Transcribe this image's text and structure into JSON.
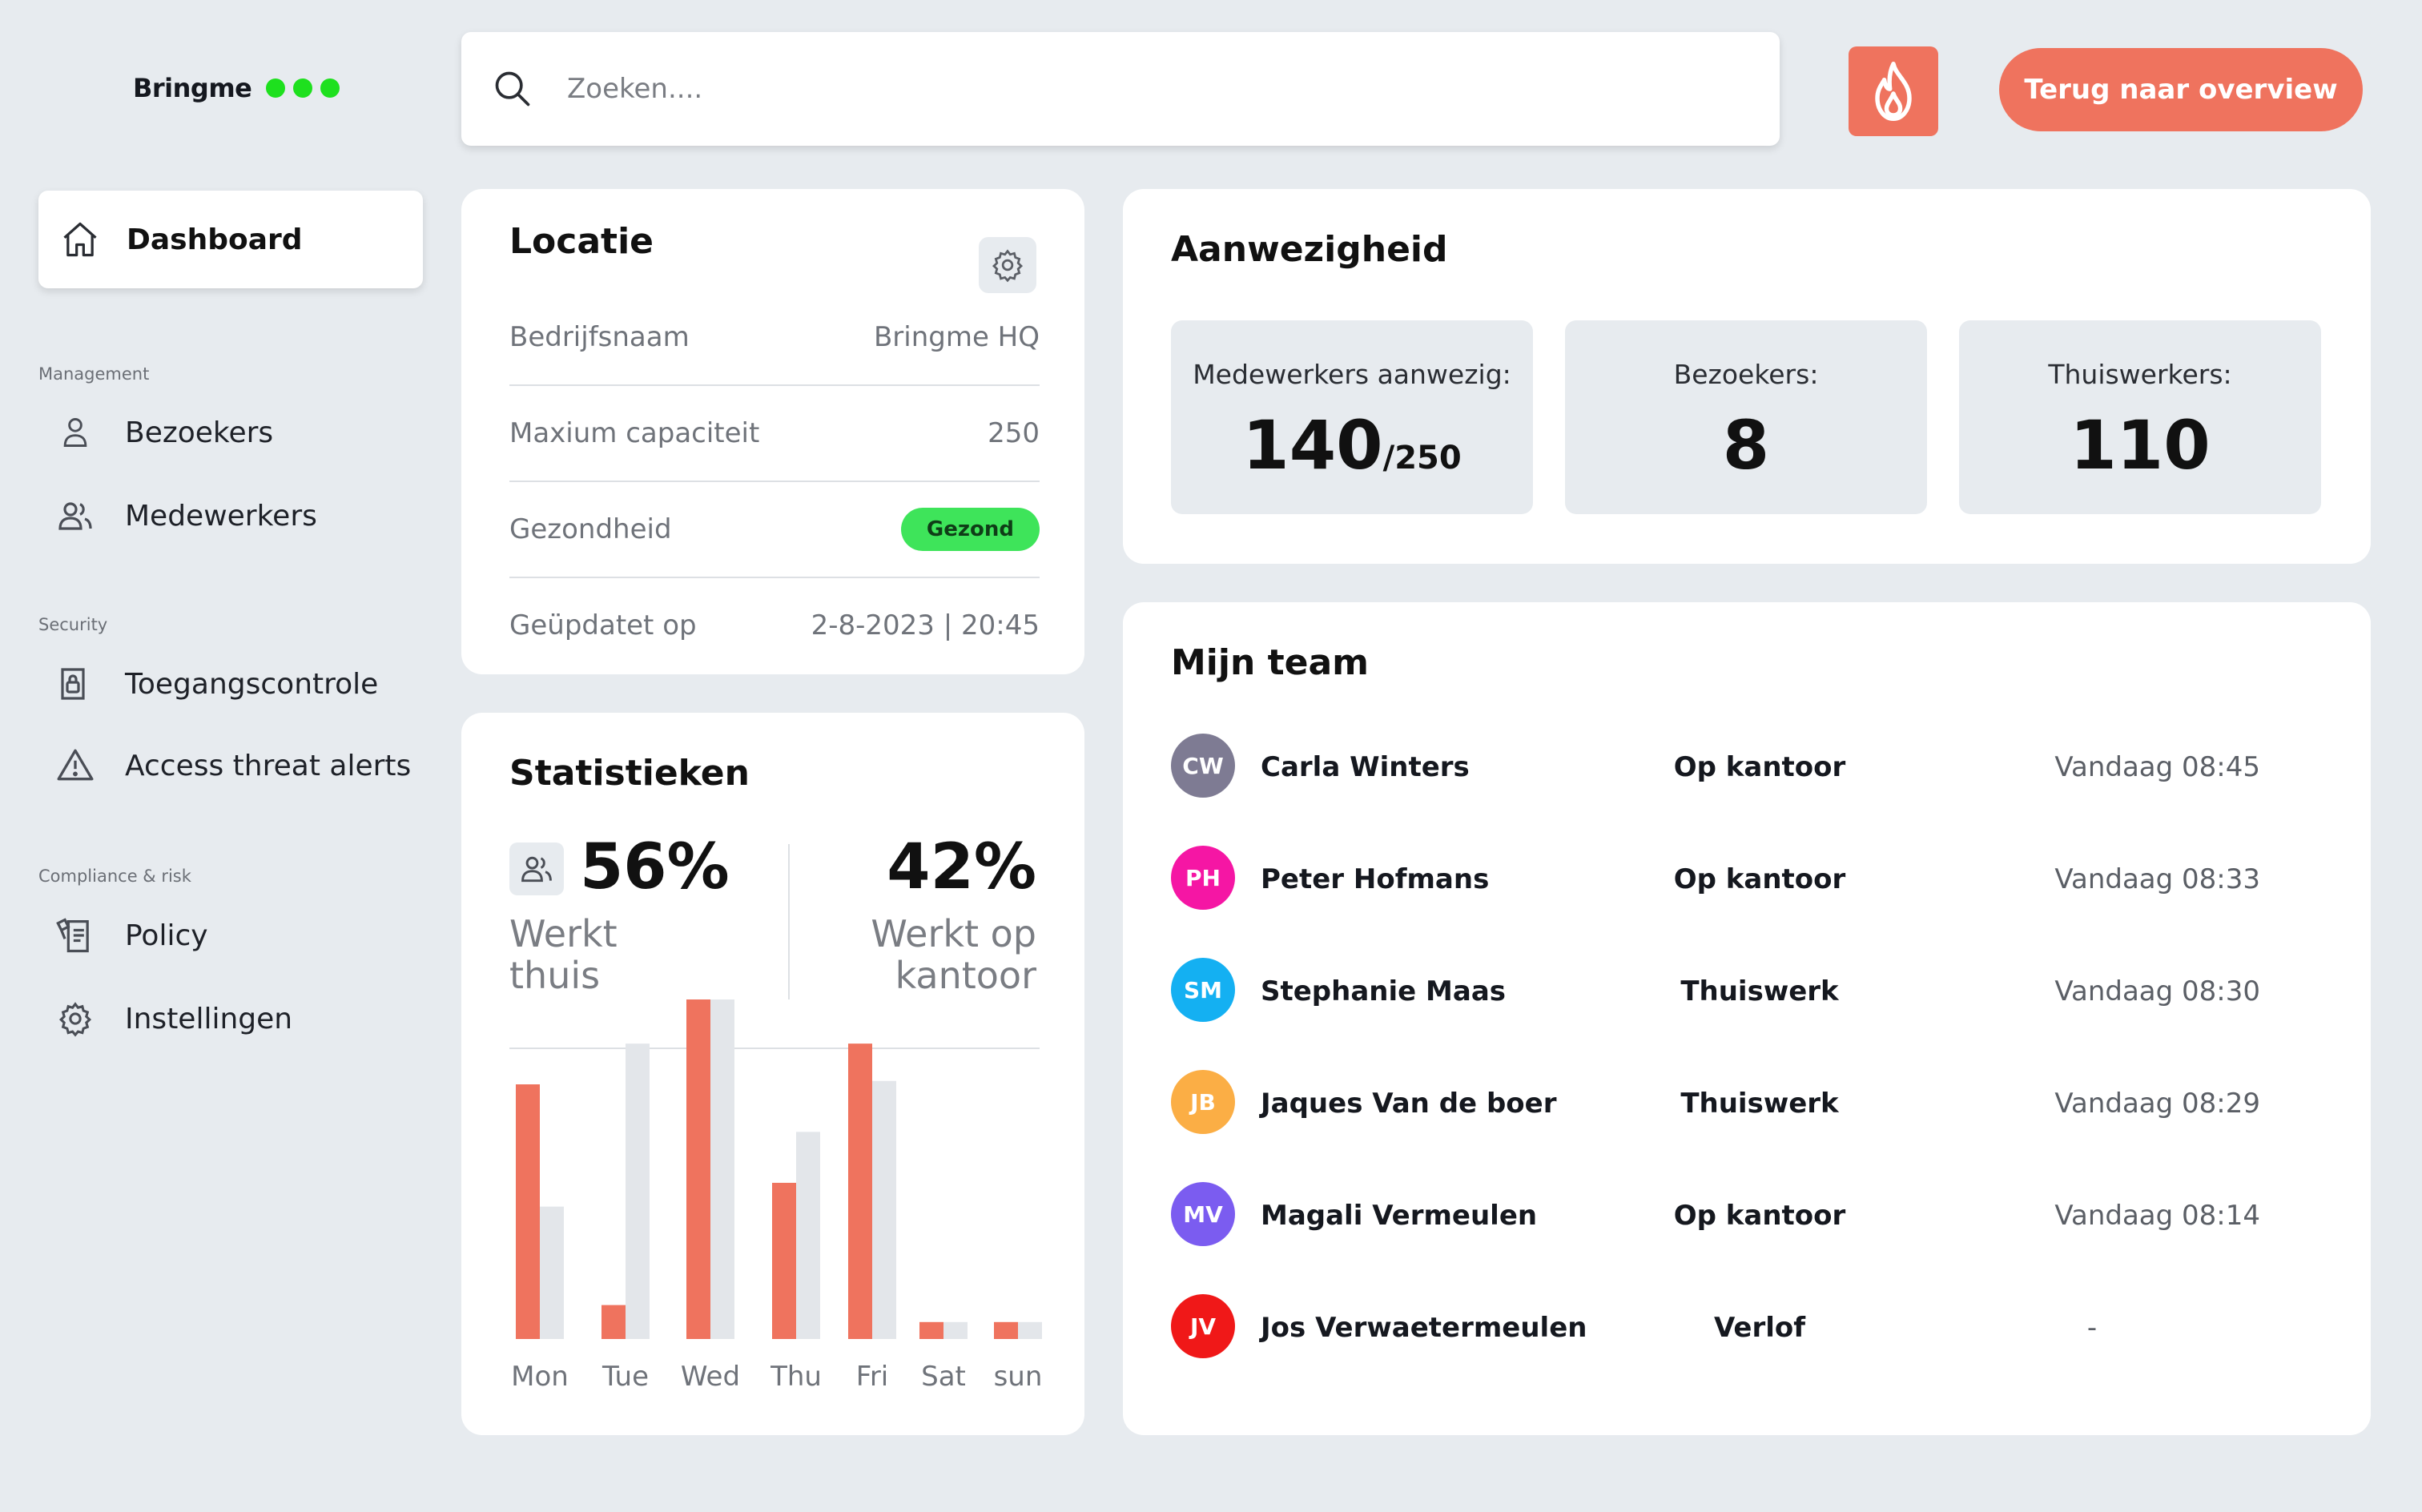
{
  "brand": {
    "name": "Bringme"
  },
  "search": {
    "placeholder": "Zoeken...."
  },
  "header": {
    "back_button": "Terug naar overview"
  },
  "sidebar": {
    "dashboard": "Dashboard",
    "sections": {
      "management": "Management",
      "security": "Security",
      "compliance": "Compliance & risk"
    },
    "items": {
      "bezoekers": "Bezoekers",
      "medewerkers": "Medewerkers",
      "toegangscontrole": "Toegangscontrole",
      "access_threat_alerts": "Access threat alerts",
      "policy": "Policy",
      "instellingen": "Instellingen"
    }
  },
  "locatie": {
    "title": "Locatie",
    "rows": [
      {
        "label": "Bedrijfsnaam",
        "value": "Bringme HQ"
      },
      {
        "label": "Maxium capaciteit",
        "value": "250"
      },
      {
        "label": "Gezondheid",
        "value": "Gezond"
      },
      {
        "label": "Geüpdatet op",
        "value": "2-8-2023 | 20:45"
      }
    ]
  },
  "aanwezigheid": {
    "title": "Aanwezigheid",
    "stats": [
      {
        "label": "Medewerkers aanwezig:",
        "value": "140",
        "sub": "/250"
      },
      {
        "label": "Bezoekers:",
        "value": "8"
      },
      {
        "label": "Thuiswerkers:",
        "value": "110"
      }
    ]
  },
  "team": {
    "title": "Mijn team",
    "members": [
      {
        "initials": "CW",
        "name": "Carla Winters",
        "status": "Op kantoor",
        "time": "Vandaag 08:45",
        "color": "#7e7b93"
      },
      {
        "initials": "PH",
        "name": "Peter Hofmans",
        "status": "Op kantoor",
        "time": "Vandaag 08:33",
        "color": "#f516a4"
      },
      {
        "initials": "SM",
        "name": "Stephanie Maas",
        "status": "Thuiswerk",
        "time": "Vandaag 08:30",
        "color": "#14b0f2"
      },
      {
        "initials": "JB",
        "name": "Jaques Van de boer",
        "status": "Thuiswerk",
        "time": "Vandaag 08:29",
        "color": "#fbae45"
      },
      {
        "initials": "MV",
        "name": "Magali Vermeulen",
        "status": "Op kantoor",
        "time": "Vandaag 08:14",
        "color": "#7b5cf0"
      },
      {
        "initials": "JV",
        "name": "Jos Verwaetermeulen",
        "status": "Verlof",
        "time": "-",
        "color": "#f01818"
      }
    ]
  },
  "statistieken": {
    "title": "Statistieken",
    "home_pct": "56%",
    "home_label_1": "Werkt",
    "home_label_2": "thuis",
    "office_pct": "42%",
    "office_label_1": "Werkt op",
    "office_label_2": "kantoor"
  },
  "chart_data": {
    "type": "bar",
    "categories": [
      "Mon",
      "Tue",
      "Wed",
      "Thu",
      "Fri",
      "Sat",
      "sun"
    ],
    "series": [
      {
        "values": [
          75,
          10,
          100,
          46,
          87,
          5,
          5
        ],
        "color": "#ef735e"
      },
      {
        "values": [
          39,
          87,
          100,
          61,
          76,
          5,
          5
        ],
        "color": "#e3e6ea"
      }
    ],
    "ylim": [
      0,
      100
    ],
    "grid": false
  },
  "colors": {
    "accent": "#ef735e",
    "healthy": "#3ee45a",
    "brand_dot": "#1ee01e",
    "background": "#e7ebef"
  }
}
